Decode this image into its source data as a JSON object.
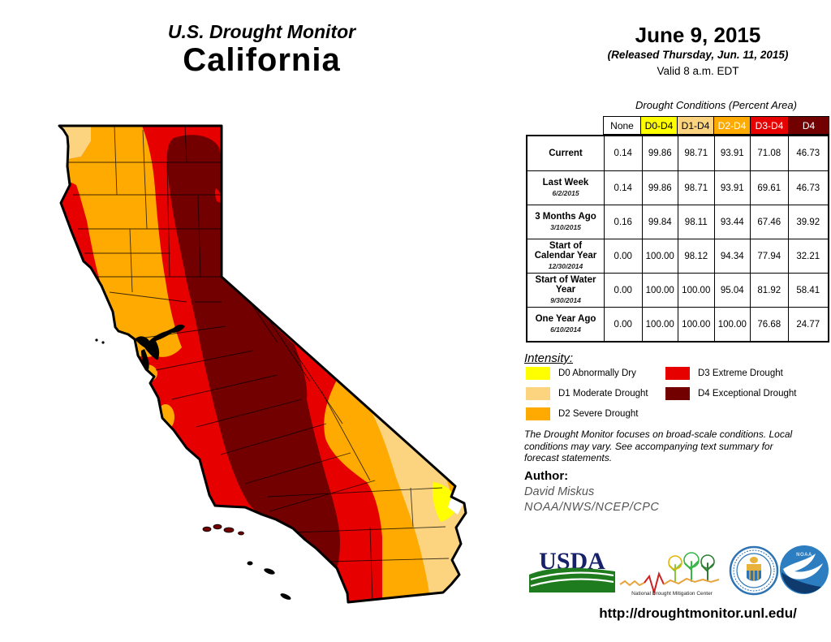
{
  "title": {
    "line1": "U.S. Drought Monitor",
    "line2": "California"
  },
  "date_block": {
    "date": "June 9, 2015",
    "released": "(Released Thursday, Jun. 11, 2015)",
    "valid": "Valid 8 a.m. EDT"
  },
  "table": {
    "caption": "Drought Conditions (Percent Area)",
    "headers": [
      "None",
      "D0-D4",
      "D1-D4",
      "D2-D4",
      "D3-D4",
      "D4"
    ],
    "header_colors": [
      "#FFFFFF",
      "#FFFF00",
      "#FCD37F",
      "#FFAA00",
      "#E60000",
      "#730000"
    ],
    "header_text_colors": [
      "#000000",
      "#000000",
      "#000000",
      "#FFFFFF",
      "#FFFFFF",
      "#FFFFFF"
    ],
    "rows": [
      {
        "label": "Current",
        "date": "",
        "values": [
          "0.14",
          "99.86",
          "98.71",
          "93.91",
          "71.08",
          "46.73"
        ]
      },
      {
        "label": "Last Week",
        "date": "6/2/2015",
        "values": [
          "0.14",
          "99.86",
          "98.71",
          "93.91",
          "69.61",
          "46.73"
        ]
      },
      {
        "label": "3 Months Ago",
        "date": "3/10/2015",
        "values": [
          "0.16",
          "99.84",
          "98.11",
          "93.44",
          "67.46",
          "39.92"
        ]
      },
      {
        "label": "Start of Calendar Year",
        "date": "12/30/2014",
        "values": [
          "0.00",
          "100.00",
          "98.12",
          "94.34",
          "77.94",
          "32.21"
        ]
      },
      {
        "label": "Start of Water Year",
        "date": "9/30/2014",
        "values": [
          "0.00",
          "100.00",
          "100.00",
          "95.04",
          "81.92",
          "58.41"
        ]
      },
      {
        "label": "One Year Ago",
        "date": "6/10/2014",
        "values": [
          "0.00",
          "100.00",
          "100.00",
          "100.00",
          "76.68",
          "24.77"
        ]
      }
    ]
  },
  "legend": {
    "title": "Intensity:",
    "items": [
      {
        "code": "d0",
        "label": "D0 Abnormally Dry",
        "color": "#FFFF00"
      },
      {
        "code": "d1",
        "label": "D1 Moderate Drought",
        "color": "#FCD37F"
      },
      {
        "code": "d2",
        "label": "D2 Severe Drought",
        "color": "#FFAA00"
      },
      {
        "code": "d3",
        "label": "D3 Extreme Drought",
        "color": "#E60000"
      },
      {
        "code": "d4",
        "label": "D4 Exceptional Drought",
        "color": "#730000"
      }
    ]
  },
  "disclaimer": "The Drought Monitor focuses on broad-scale conditions. Local conditions may vary. See accompanying text summary for forecast statements.",
  "author": {
    "heading": "Author:",
    "name": "David Miskus",
    "org": "NOAA/NWS/NCEP/CPC"
  },
  "footer": {
    "url": "http://droughtmonitor.unl.edu/"
  },
  "logos": {
    "usda": {
      "text": "USDA",
      "name": "U.S. Department of Agriculture"
    },
    "ndmc": {
      "caption": "National Drought Mitigation Center"
    },
    "doc": {
      "name": "U.S. Department of Commerce"
    },
    "noaa": {
      "text": "NOAA",
      "name": "National Oceanic and Atmospheric Administration"
    }
  },
  "map": {
    "state": "California",
    "colors": {
      "none": "#FFFFFF",
      "d0": "#FFFF00",
      "d1": "#FCD37F",
      "d2": "#FFAA00",
      "d3": "#E60000",
      "d4": "#730000",
      "water": "#000000",
      "outline": "#000000"
    }
  }
}
